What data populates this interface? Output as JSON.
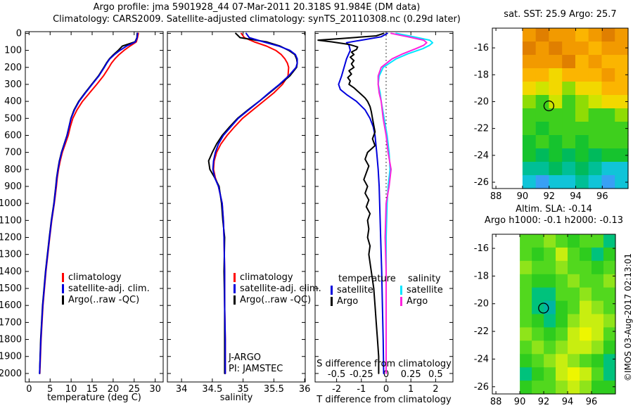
{
  "title": {
    "line1": "Argo profile: jma 5901928_44 07-Mar-2011 20.318S 91.984E (DM data)",
    "line2": "Climatology: CARS2009. Satellite-adjusted climatology: synTS_20110308.nc (0.29d later)"
  },
  "copyright": "©IMOS 03-Aug-2017 02:13:01",
  "chart_data": [
    {
      "id": "temperature-profile",
      "type": "line",
      "xlabel": "temperature (deg C)",
      "xticks": [
        "0",
        "5",
        "10",
        "15",
        "20",
        "25",
        "30"
      ],
      "yticks": [
        "0",
        "100",
        "200",
        "300",
        "400",
        "500",
        "600",
        "700",
        "800",
        "900",
        "1000",
        "1100",
        "1200",
        "1300",
        "1400",
        "1500",
        "1600",
        "1700",
        "1800",
        "1900",
        "2000"
      ],
      "xlim": [
        -0.9,
        31.9
      ],
      "ylim": [
        0,
        2000
      ],
      "depths": [
        0,
        25,
        50,
        75,
        100,
        125,
        150,
        175,
        200,
        250,
        300,
        350,
        400,
        450,
        500,
        550,
        600,
        650,
        700,
        750,
        800,
        850,
        900,
        1000,
        1100,
        1200,
        1400,
        1600,
        1800,
        2000
      ],
      "legend": [
        {
          "label": "climatology",
          "color": "#ff0000"
        },
        {
          "label": "satellite-adj. clim.",
          "color": "#0000dd"
        },
        {
          "label": "Argo(..raw -QC)",
          "color": "#000000"
        }
      ],
      "series": [
        {
          "name": "climatology",
          "color": "#ff0000",
          "values": [
            26.0,
            25.8,
            25.5,
            24.0,
            22.6,
            21.4,
            20.4,
            19.6,
            19.0,
            17.7,
            16.1,
            14.4,
            12.7,
            11.4,
            10.4,
            9.8,
            9.3,
            8.6,
            7.9,
            7.4,
            7.0,
            6.7,
            6.5,
            6.0,
            5.4,
            4.9,
            4.0,
            3.3,
            2.85,
            2.55
          ]
        },
        {
          "name": "Argo(..raw -QC)",
          "color": "#000000",
          "values": [
            25.7,
            25.65,
            25.2,
            22.2,
            21.2,
            20.1,
            19.1,
            18.4,
            17.8,
            16.5,
            14.9,
            13.3,
            11.8,
            10.7,
            9.95,
            9.5,
            9.0,
            8.35,
            7.7,
            7.2,
            6.85,
            6.55,
            6.35,
            5.9,
            5.3,
            4.8,
            3.9,
            3.2,
            2.75,
            2.5
          ]
        },
        {
          "name": "satellite-adj. clim.",
          "color": "#0000dd",
          "values": [
            25.8,
            25.7,
            25.3,
            23.2,
            21.6,
            20.3,
            19.2,
            18.5,
            17.9,
            16.6,
            15.0,
            13.4,
            11.9,
            10.8,
            10.0,
            9.5,
            9.05,
            8.4,
            7.75,
            7.25,
            6.9,
            6.6,
            6.4,
            5.95,
            5.35,
            4.85,
            3.95,
            3.25,
            2.8,
            2.5
          ]
        }
      ]
    },
    {
      "id": "salinity-profile",
      "type": "line",
      "xlabel": "salinity",
      "xticks": [
        "34",
        "34.5",
        "35",
        "35.5",
        "36"
      ],
      "xlim": [
        33.77,
        36.01
      ],
      "ylim": [
        0,
        2000
      ],
      "annotation": [
        "J-ARGO",
        "PI: JAMSTEC"
      ],
      "depths": [
        0,
        25,
        50,
        75,
        100,
        125,
        150,
        175,
        200,
        250,
        300,
        350,
        400,
        450,
        500,
        550,
        600,
        650,
        700,
        750,
        800,
        850,
        900,
        1000,
        1100,
        1200,
        1400,
        1600,
        1800,
        2000
      ],
      "legend": [
        {
          "label": "climatology",
          "color": "#ff0000"
        },
        {
          "label": "satellite-adj. clim.",
          "color": "#0000dd"
        },
        {
          "label": "Argo(..raw -QC)",
          "color": "#000000"
        }
      ],
      "series": [
        {
          "name": "climatology",
          "color": "#ff0000",
          "values": [
            34.97,
            35.02,
            35.18,
            35.38,
            35.53,
            35.62,
            35.68,
            35.72,
            35.74,
            35.73,
            35.64,
            35.5,
            35.33,
            35.16,
            34.99,
            34.86,
            34.74,
            34.64,
            34.57,
            34.53,
            34.52,
            34.55,
            34.6,
            34.66,
            34.68,
            34.69,
            34.7,
            34.7,
            34.71,
            34.71
          ]
        },
        {
          "name": "Argo(..raw -QC)",
          "color": "#000000",
          "values": [
            34.88,
            34.95,
            35.38,
            35.6,
            35.74,
            35.84,
            35.87,
            35.88,
            35.87,
            35.76,
            35.6,
            35.43,
            35.26,
            35.08,
            34.91,
            34.78,
            34.66,
            34.57,
            34.5,
            34.44,
            34.46,
            34.54,
            34.61,
            34.65,
            34.67,
            34.7,
            34.69,
            34.7,
            34.7,
            34.7
          ]
        },
        {
          "name": "satellite-adj. clim.",
          "color": "#0000dd",
          "values": [
            35.05,
            35.1,
            35.33,
            35.58,
            35.76,
            35.85,
            35.88,
            35.88,
            35.86,
            35.74,
            35.59,
            35.42,
            35.26,
            35.09,
            34.92,
            34.8,
            34.68,
            34.6,
            34.55,
            34.52,
            34.51,
            34.54,
            34.6,
            34.66,
            34.68,
            34.69,
            34.7,
            34.7,
            34.71,
            34.71
          ]
        }
      ]
    },
    {
      "id": "difference-profile",
      "type": "line",
      "xlabel": "T difference from climatology",
      "xlabel2": "S difference from climatology",
      "xticks": [
        "-2",
        "-1",
        "0",
        "1",
        "2"
      ],
      "xticks2": [
        "-0.5",
        "-0.25",
        "0",
        "0.25",
        "0.5"
      ],
      "xlim": [
        -2.87,
        2.7
      ],
      "ylim": [
        0,
        2000
      ],
      "legend_t": {
        "title": "temperature",
        "items": [
          {
            "label": "satellite",
            "color": "#0000dd"
          },
          {
            "label": "Argo",
            "color": "#000000"
          }
        ]
      },
      "legend_s": {
        "title": "salinity",
        "items": [
          {
            "label": "satellite",
            "color": "#00e6ff"
          },
          {
            "label": "Argo",
            "color": "#ff22dd"
          }
        ]
      },
      "series": [
        {
          "name": "T satellite",
          "color": "#0000dd",
          "depths": [
            0,
            20,
            40,
            55,
            70,
            100,
            150,
            200,
            250,
            300,
            330,
            360,
            400,
            450,
            500,
            550,
            600,
            700,
            800,
            900,
            1000,
            1200,
            1400,
            1600,
            1800,
            2000
          ],
          "values": [
            0.05,
            -0.2,
            -1.0,
            -1.6,
            -1.5,
            -1.45,
            -1.6,
            -1.7,
            -1.8,
            -1.92,
            -1.85,
            -1.6,
            -1.2,
            -0.85,
            -0.65,
            -0.52,
            -0.45,
            -0.38,
            -0.32,
            -0.28,
            -0.26,
            -0.22,
            -0.18,
            -0.15,
            -0.12,
            -0.1
          ]
        },
        {
          "name": "S satellite",
          "color": "#00e6ff",
          "axis_scale": 4,
          "depths": [
            0,
            20,
            40,
            55,
            70,
            90,
            120,
            150,
            200,
            250,
            300,
            350,
            400,
            500,
            600,
            700,
            800,
            900,
            1000,
            1200,
            1400,
            1600,
            1800,
            2000
          ],
          "values": [
            0.1,
            0.28,
            0.44,
            0.47,
            0.44,
            0.37,
            0.22,
            0.1,
            -0.03,
            -0.07,
            -0.08,
            -0.06,
            -0.05,
            -0.02,
            0.01,
            0.03,
            0.04,
            0.02,
            0.01,
            0.0,
            0.0,
            0.0,
            0.0,
            0.0
          ]
        },
        {
          "name": "S Argo",
          "color": "#ff22dd",
          "axis_scale": 4,
          "depths": [
            0,
            20,
            40,
            55,
            70,
            90,
            120,
            150,
            200,
            250,
            300,
            350,
            400,
            500,
            600,
            700,
            800,
            900,
            1000,
            1200,
            1400,
            1600,
            1800,
            2000
          ],
          "values": [
            0.05,
            0.22,
            0.38,
            0.41,
            0.38,
            0.3,
            0.17,
            0.06,
            -0.05,
            -0.08,
            -0.08,
            -0.07,
            -0.05,
            -0.03,
            0.0,
            0.02,
            0.05,
            0.03,
            0.0,
            -0.01,
            0.0,
            0.0,
            0.0,
            0.0
          ]
        },
        {
          "name": "T Argo",
          "color": "#000000",
          "depths": [
            0,
            15,
            30,
            40,
            50,
            65,
            80,
            95,
            110,
            125,
            140,
            160,
            180,
            200,
            220,
            240,
            260,
            280,
            300,
            320,
            340,
            360,
            380,
            400,
            430,
            460,
            500,
            540,
            580,
            620,
            660,
            700,
            740,
            780,
            820,
            860,
            900,
            940,
            980,
            1020,
            1060,
            1100,
            1150,
            1200,
            1250,
            1300,
            1400,
            1500,
            1600,
            1700,
            1800,
            1900,
            2000
          ],
          "values": [
            -0.1,
            -0.4,
            -1.8,
            -2.75,
            -2.2,
            -1.5,
            -1.15,
            -1.2,
            -1.4,
            -1.3,
            -1.45,
            -1.3,
            -1.4,
            -1.3,
            -1.5,
            -1.4,
            -1.55,
            -1.45,
            -1.5,
            -1.3,
            -1.15,
            -1.0,
            -0.85,
            -0.75,
            -0.65,
            -0.6,
            -0.55,
            -0.5,
            -0.45,
            -0.55,
            -0.45,
            -0.75,
            -0.85,
            -0.7,
            -0.8,
            -0.9,
            -0.75,
            -0.85,
            -0.7,
            -0.8,
            -0.65,
            -0.75,
            -0.7,
            -0.75,
            -0.65,
            -0.7,
            -0.6,
            -0.5,
            -0.45,
            -0.4,
            -0.35,
            -0.3,
            -0.3
          ]
        }
      ]
    },
    {
      "id": "sst-map",
      "type": "heatmap",
      "title": "sat. SST: 25.9 Argo: 25.7",
      "xticks": [
        "88",
        "90",
        "92",
        "94",
        "96"
      ],
      "yticks": [
        "-16",
        "-18",
        "-20",
        "-22",
        "-24",
        "-26"
      ],
      "marker": {
        "lon": 91.984,
        "lat": -20.318
      },
      "palette": [
        "#e07f00",
        "#f29a00",
        "#fbb501",
        "#f2d800",
        "#cfe400",
        "#8fdc05",
        "#3ecf1d",
        "#16c32e",
        "#00ba5c",
        "#00bf96",
        "#10c4d8",
        "#38a0f5"
      ],
      "grid": [
        [
          1,
          0,
          1,
          1,
          2,
          1,
          0,
          1
        ],
        [
          0,
          1,
          0,
          1,
          1,
          2,
          1,
          1
        ],
        [
          1,
          1,
          1,
          0,
          2,
          1,
          2,
          2
        ],
        [
          2,
          2,
          3,
          2,
          2,
          2,
          1,
          2
        ],
        [
          3,
          4,
          3,
          5,
          3,
          3,
          2,
          2
        ],
        [
          5,
          6,
          4,
          6,
          5,
          4,
          3,
          3
        ],
        [
          6,
          6,
          6,
          6,
          5,
          6,
          6,
          5
        ],
        [
          6,
          7,
          6,
          6,
          6,
          6,
          6,
          6
        ],
        [
          7,
          6,
          7,
          6,
          7,
          6,
          6,
          6
        ],
        [
          7,
          8,
          7,
          8,
          7,
          8,
          7,
          7
        ],
        [
          9,
          9,
          8,
          9,
          8,
          9,
          10,
          10
        ],
        [
          10,
          11,
          10,
          10,
          9,
          10,
          11,
          10
        ]
      ]
    },
    {
      "id": "sla-map",
      "type": "heatmap",
      "title_lines": [
        "Altim. SLA: -0.14",
        "Argo h1000: -0.1 h2000: -0.13"
      ],
      "xticks": [
        "88",
        "90",
        "92",
        "94",
        "96"
      ],
      "yticks": [
        "-16",
        "-18",
        "-20",
        "-22",
        "-24",
        "-26"
      ],
      "marker": {
        "lon": 91.984,
        "lat": -20.318
      },
      "palette": [
        "#eef600",
        "#c8ee10",
        "#8fe41a",
        "#52d81e",
        "#2ecc1e",
        "#00c27c",
        "#00b5a4"
      ],
      "grid": [
        [
          3,
          3,
          2,
          3,
          4,
          3,
          3,
          5
        ],
        [
          3,
          4,
          3,
          1,
          3,
          4,
          5,
          4
        ],
        [
          2,
          3,
          3,
          2,
          3,
          3,
          4,
          3
        ],
        [
          3,
          4,
          4,
          3,
          2,
          3,
          3,
          2
        ],
        [
          3,
          5,
          5,
          3,
          3,
          2,
          3,
          3
        ],
        [
          3,
          5,
          6,
          4,
          3,
          1,
          2,
          3
        ],
        [
          3,
          4,
          5,
          4,
          2,
          1,
          1,
          2
        ],
        [
          2,
          3,
          4,
          3,
          1,
          0,
          1,
          3
        ],
        [
          3,
          2,
          3,
          2,
          1,
          1,
          2,
          4
        ],
        [
          4,
          3,
          2,
          1,
          2,
          3,
          4,
          5
        ],
        [
          5,
          4,
          3,
          1,
          0,
          1,
          3,
          5
        ],
        [
          4,
          3,
          3,
          2,
          1,
          2,
          4,
          4
        ]
      ]
    }
  ]
}
